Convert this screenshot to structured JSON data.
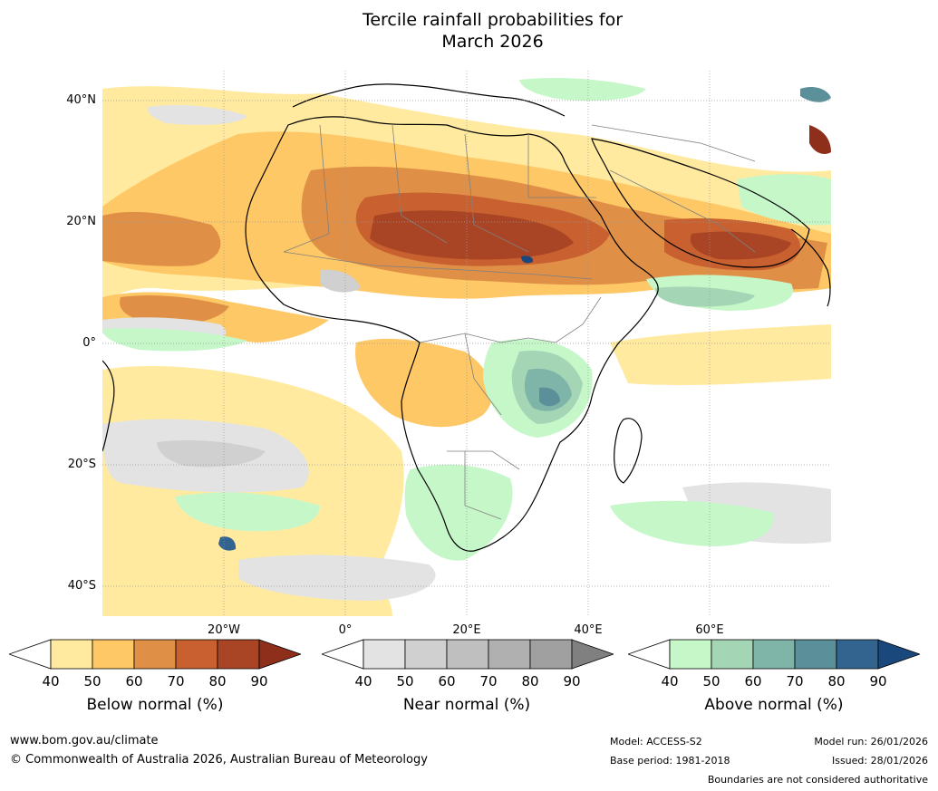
{
  "title": {
    "line1": "Tercile rainfall probabilities for",
    "line2": "March 2026"
  },
  "map": {
    "region": "Africa",
    "lat_labels": [
      "40°N",
      "20°N",
      "0°",
      "20°S",
      "40°S"
    ],
    "lon_labels": [
      "20°W",
      "0°",
      "20°E",
      "40°E",
      "60°E"
    ],
    "colors": {
      "below": [
        "#ffeaa0",
        "#fdc865",
        "#df8f46",
        "#c8612f",
        "#a94525",
        "#8e2f1c"
      ],
      "near": [
        "#e3e3e3",
        "#d0d0d0",
        "#bfbfbf",
        "#b0b0b0",
        "#a0a0a0",
        "#808080"
      ],
      "above": [
        "#c6f7c9",
        "#a4d6b5",
        "#7fb5a9",
        "#5b8f9a",
        "#33648f",
        "#1a487d"
      ],
      "land_border": "#000000",
      "country_border": "#808080",
      "gridline": "#999999"
    }
  },
  "colorbars": [
    {
      "id": "below",
      "ticks": [
        "40",
        "50",
        "60",
        "70",
        "80",
        "90"
      ],
      "label": "Below normal (%)"
    },
    {
      "id": "near",
      "ticks": [
        "40",
        "50",
        "60",
        "70",
        "80",
        "90"
      ],
      "label": "Near normal (%)"
    },
    {
      "id": "above",
      "ticks": [
        "40",
        "50",
        "60",
        "70",
        "80",
        "90"
      ],
      "label": "Above normal (%)"
    }
  ],
  "footer": {
    "website": "www.bom.gov.au/climate",
    "copyright": "© Commonwealth of Australia 2026, Australian Bureau of Meteorology",
    "model": "Model: ACCESS-S2",
    "base_period": "Base period: 1981-2018",
    "model_run": "Model run: 26/01/2026",
    "issued": "Issued: 28/01/2026",
    "disclaimer": "Boundaries are not considered authoritative"
  }
}
